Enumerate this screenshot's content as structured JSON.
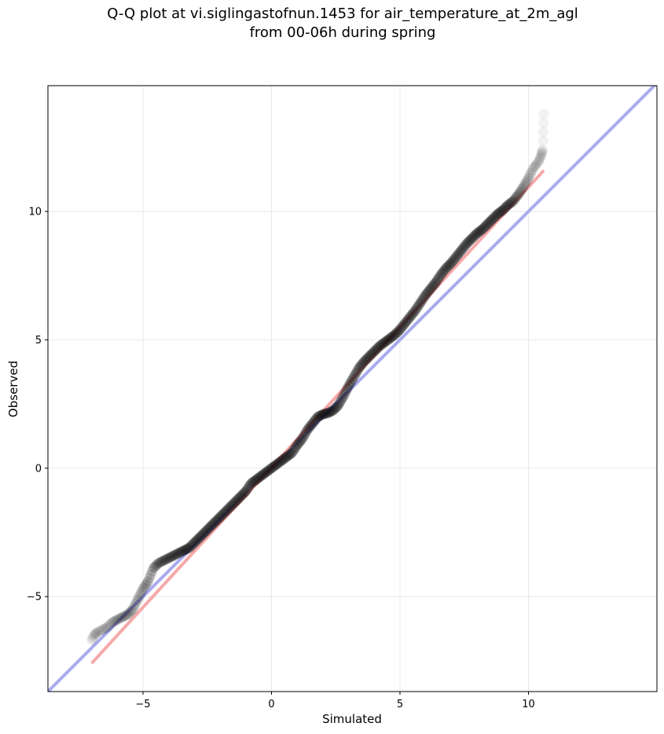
{
  "chart_data": {
    "type": "scatter",
    "title": "Q-Q plot at vi.siglingastofnun.1453 for air_temperature_at_2m_agl",
    "subtitle": "from 00-06h during spring",
    "xlabel": "Simulated",
    "ylabel": "Observed",
    "xlim": [
      -8.7,
      15.0
    ],
    "ylim": [
      -8.7,
      14.9
    ],
    "x_ticks": [
      -5,
      0,
      5,
      10
    ],
    "y_ticks": [
      -5,
      0,
      5,
      10
    ],
    "x_tick_labels": [
      "−5",
      "0",
      "5",
      "10"
    ],
    "y_tick_labels": [
      "−5",
      "0",
      "5",
      "10"
    ],
    "grid": true,
    "colors": {
      "points": "#000000",
      "identity_line": "#a9aaf0",
      "fit_line": "#f6a8a8",
      "grid": "#e8e8e8"
    },
    "lines": [
      {
        "kind": "identity",
        "x": [
          -8.7,
          15.0
        ],
        "y": [
          -8.7,
          15.0
        ]
      },
      {
        "kind": "fit",
        "x": [
          -7.0,
          10.6
        ],
        "y": [
          -7.6,
          11.6
        ]
      }
    ],
    "quantiles": {
      "x": [
        -7.0,
        -6.9,
        -6.8,
        -6.6,
        -6.4,
        -6.2,
        -6.0,
        -5.8,
        -5.6,
        -5.4,
        -5.2,
        -5.0,
        -4.8,
        -4.6,
        -4.4,
        -4.2,
        -4.0,
        -3.8,
        -3.6,
        -3.4,
        -3.2,
        -3.0,
        -2.8,
        -2.6,
        -2.4,
        -2.2,
        -2.0,
        -1.8,
        -1.6,
        -1.4,
        -1.2,
        -1.0,
        -0.8,
        -0.6,
        -0.4,
        -0.2,
        0.0,
        0.2,
        0.4,
        0.6,
        0.8,
        1.0,
        1.2,
        1.4,
        1.6,
        1.8,
        2.0,
        2.2,
        2.4,
        2.6,
        2.8,
        3.0,
        3.2,
        3.4,
        3.6,
        3.8,
        4.0,
        4.2,
        4.4,
        4.6,
        4.8,
        5.0,
        5.2,
        5.4,
        5.6,
        5.8,
        6.0,
        6.2,
        6.4,
        6.6,
        6.8,
        7.0,
        7.2,
        7.4,
        7.6,
        7.8,
        8.0,
        8.2,
        8.4,
        8.6,
        8.8,
        9.0,
        9.2,
        9.4,
        9.6,
        9.8,
        10.0,
        10.2,
        10.4,
        10.5,
        10.55,
        10.6
      ],
      "y": [
        -6.7,
        -6.5,
        -6.4,
        -6.3,
        -6.2,
        -6.0,
        -5.9,
        -5.8,
        -5.7,
        -5.5,
        -5.1,
        -4.7,
        -4.4,
        -3.9,
        -3.7,
        -3.6,
        -3.5,
        -3.4,
        -3.3,
        -3.2,
        -3.1,
        -2.9,
        -2.7,
        -2.5,
        -2.3,
        -2.1,
        -1.9,
        -1.7,
        -1.5,
        -1.3,
        -1.1,
        -0.9,
        -0.6,
        -0.45,
        -0.3,
        -0.15,
        0.0,
        0.15,
        0.3,
        0.45,
        0.6,
        0.9,
        1.15,
        1.5,
        1.75,
        2.0,
        2.1,
        2.15,
        2.25,
        2.45,
        2.8,
        3.2,
        3.55,
        3.9,
        4.15,
        4.35,
        4.55,
        4.75,
        4.9,
        5.05,
        5.2,
        5.4,
        5.65,
        5.9,
        6.15,
        6.45,
        6.75,
        7.0,
        7.25,
        7.55,
        7.8,
        8.0,
        8.25,
        8.5,
        8.75,
        8.95,
        9.15,
        9.3,
        9.5,
        9.7,
        9.9,
        10.05,
        10.25,
        10.4,
        10.65,
        10.95,
        11.3,
        11.7,
        11.95,
        12.2,
        12.4,
        13.8
      ]
    }
  }
}
